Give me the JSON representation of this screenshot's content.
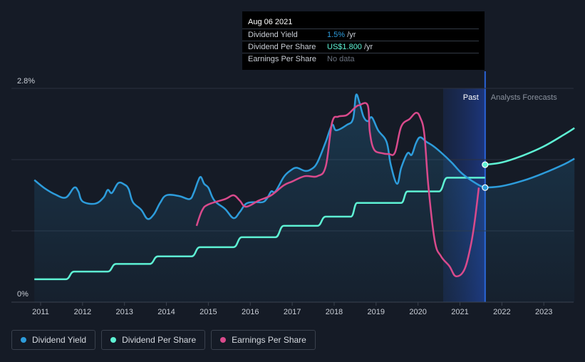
{
  "chart_data": {
    "type": "line",
    "title": "",
    "xlabel": "",
    "ylabel": "",
    "ylim": [
      0,
      2.8
    ],
    "y_tick_labels": [
      "2.8%",
      "0%"
    ],
    "x_ticks": [
      2011,
      2012,
      2013,
      2014,
      2015,
      2016,
      2017,
      2018,
      2019,
      2020,
      2021,
      2022,
      2023
    ],
    "x_tick_labels": [
      "2011",
      "2012",
      "2013",
      "2014",
      "2015",
      "2016",
      "2017",
      "2018",
      "2019",
      "2020",
      "2021",
      "2022",
      "2023"
    ],
    "xlim": [
      2010.8,
      2023.73
    ],
    "past_label": "Past",
    "forecast_label": "Analysts Forecasts",
    "past_region_start": 2020.6,
    "forecast_start": 2021.6,
    "series": [
      {
        "name": "Dividend Yield",
        "color": "#2d9cdb",
        "unit": "%",
        "points": [
          [
            2010.85,
            1.6
          ],
          [
            2011.1,
            1.49
          ],
          [
            2011.35,
            1.41
          ],
          [
            2011.6,
            1.37
          ],
          [
            2011.8,
            1.5
          ],
          [
            2011.9,
            1.45
          ],
          [
            2012.0,
            1.32
          ],
          [
            2012.3,
            1.29
          ],
          [
            2012.5,
            1.37
          ],
          [
            2012.6,
            1.47
          ],
          [
            2012.7,
            1.43
          ],
          [
            2012.85,
            1.56
          ],
          [
            2013.0,
            1.54
          ],
          [
            2013.1,
            1.48
          ],
          [
            2013.2,
            1.31
          ],
          [
            2013.4,
            1.21
          ],
          [
            2013.55,
            1.09
          ],
          [
            2013.7,
            1.15
          ],
          [
            2013.85,
            1.3
          ],
          [
            2014.0,
            1.4
          ],
          [
            2014.3,
            1.39
          ],
          [
            2014.55,
            1.35
          ],
          [
            2014.65,
            1.43
          ],
          [
            2014.75,
            1.58
          ],
          [
            2014.82,
            1.64
          ],
          [
            2014.9,
            1.55
          ],
          [
            2015.0,
            1.5
          ],
          [
            2015.1,
            1.37
          ],
          [
            2015.2,
            1.3
          ],
          [
            2015.4,
            1.22
          ],
          [
            2015.6,
            1.1
          ],
          [
            2015.75,
            1.18
          ],
          [
            2015.9,
            1.29
          ],
          [
            2016.1,
            1.31
          ],
          [
            2016.3,
            1.31
          ],
          [
            2016.4,
            1.36
          ],
          [
            2016.5,
            1.45
          ],
          [
            2016.6,
            1.45
          ],
          [
            2016.8,
            1.64
          ],
          [
            2016.95,
            1.72
          ],
          [
            2017.1,
            1.76
          ],
          [
            2017.3,
            1.72
          ],
          [
            2017.45,
            1.74
          ],
          [
            2017.6,
            1.83
          ],
          [
            2017.8,
            2.1
          ],
          [
            2017.95,
            2.32
          ],
          [
            2018.05,
            2.25
          ],
          [
            2018.3,
            2.32
          ],
          [
            2018.45,
            2.4
          ],
          [
            2018.52,
            2.71
          ],
          [
            2018.6,
            2.62
          ],
          [
            2018.7,
            2.43
          ],
          [
            2018.8,
            2.37
          ],
          [
            2018.9,
            2.42
          ],
          [
            2019.05,
            2.25
          ],
          [
            2019.25,
            2.1
          ],
          [
            2019.35,
            1.8
          ],
          [
            2019.5,
            1.55
          ],
          [
            2019.6,
            1.76
          ],
          [
            2019.75,
            1.95
          ],
          [
            2019.85,
            1.93
          ],
          [
            2019.95,
            2.08
          ],
          [
            2020.05,
            2.16
          ],
          [
            2020.2,
            2.1
          ],
          [
            2020.35,
            2.05
          ],
          [
            2020.55,
            1.96
          ],
          [
            2020.8,
            1.83
          ],
          [
            2021.0,
            1.71
          ],
          [
            2021.2,
            1.62
          ],
          [
            2021.4,
            1.55
          ],
          [
            2021.5,
            1.52
          ],
          [
            2021.6,
            1.5
          ]
        ]
      },
      {
        "name": "Dividend Yield forecast",
        "color": "#2d9cdb",
        "unit": "%",
        "points": [
          [
            2021.6,
            1.5
          ],
          [
            2022.0,
            1.52
          ],
          [
            2022.5,
            1.59
          ],
          [
            2023.0,
            1.69
          ],
          [
            2023.5,
            1.81
          ],
          [
            2023.73,
            1.88
          ]
        ]
      },
      {
        "name": "Dividend Per Share",
        "color": "#5ef2d4",
        "unit": "US$",
        "points": [
          [
            2010.85,
            0.3
          ],
          [
            2011.6,
            0.3
          ],
          [
            2011.8,
            0.4
          ],
          [
            2012.6,
            0.4
          ],
          [
            2012.8,
            0.5
          ],
          [
            2013.6,
            0.5
          ],
          [
            2013.8,
            0.6
          ],
          [
            2014.6,
            0.6
          ],
          [
            2014.8,
            0.72
          ],
          [
            2015.6,
            0.72
          ],
          [
            2015.8,
            0.85
          ],
          [
            2016.6,
            0.85
          ],
          [
            2016.8,
            1.0
          ],
          [
            2017.6,
            1.0
          ],
          [
            2017.8,
            1.12
          ],
          [
            2018.4,
            1.12
          ],
          [
            2018.55,
            1.3
          ],
          [
            2019.6,
            1.3
          ],
          [
            2019.75,
            1.45
          ],
          [
            2020.5,
            1.45
          ],
          [
            2020.7,
            1.63
          ],
          [
            2021.6,
            1.63
          ]
        ]
      },
      {
        "name": "Dividend Per Share forecast",
        "color": "#5ef2d4",
        "unit": "US$",
        "points": [
          [
            2021.6,
            1.8
          ],
          [
            2022.0,
            1.83
          ],
          [
            2022.5,
            1.92
          ],
          [
            2023.0,
            2.04
          ],
          [
            2023.5,
            2.2
          ],
          [
            2023.73,
            2.28
          ]
        ]
      },
      {
        "name": "Earnings Per Share",
        "color": "#d94a8c",
        "unit": "US$",
        "points": [
          [
            2014.72,
            1.0
          ],
          [
            2014.85,
            1.2
          ],
          [
            2015.0,
            1.28
          ],
          [
            2015.4,
            1.35
          ],
          [
            2015.6,
            1.4
          ],
          [
            2015.75,
            1.33
          ],
          [
            2015.9,
            1.25
          ],
          [
            2016.2,
            1.33
          ],
          [
            2016.5,
            1.4
          ],
          [
            2016.8,
            1.53
          ],
          [
            2017.0,
            1.58
          ],
          [
            2017.3,
            1.65
          ],
          [
            2017.6,
            1.65
          ],
          [
            2017.8,
            1.78
          ],
          [
            2017.95,
            2.35
          ],
          [
            2018.1,
            2.43
          ],
          [
            2018.3,
            2.45
          ],
          [
            2018.5,
            2.55
          ],
          [
            2018.6,
            2.58
          ],
          [
            2018.8,
            2.58
          ],
          [
            2018.85,
            2.23
          ],
          [
            2018.95,
            2.0
          ],
          [
            2019.15,
            1.95
          ],
          [
            2019.3,
            1.94
          ],
          [
            2019.45,
            1.96
          ],
          [
            2019.6,
            2.3
          ],
          [
            2019.8,
            2.4
          ],
          [
            2019.95,
            2.48
          ],
          [
            2020.05,
            2.42
          ],
          [
            2020.15,
            2.2
          ],
          [
            2020.25,
            1.5
          ],
          [
            2020.4,
            0.8
          ],
          [
            2020.55,
            0.6
          ],
          [
            2020.75,
            0.47
          ],
          [
            2020.9,
            0.34
          ],
          [
            2021.1,
            0.42
          ],
          [
            2021.25,
            0.72
          ],
          [
            2021.35,
            1.05
          ],
          [
            2021.45,
            1.5
          ]
        ]
      }
    ],
    "highlight_points": [
      {
        "series": "Dividend Per Share",
        "x": 2021.6,
        "y": 1.8
      },
      {
        "series": "Dividend Yield",
        "x": 2021.6,
        "y": 1.5
      }
    ]
  },
  "tooltip": {
    "date": "Aug 06 2021",
    "rows": [
      {
        "label": "Dividend Yield",
        "value": "1.5%",
        "unit": " /yr"
      },
      {
        "label": "Dividend Per Share",
        "value": "US$1.800",
        "unit": " /yr"
      },
      {
        "label": "Earnings Per Share",
        "value": "No data",
        "unit": ""
      }
    ]
  },
  "legend": [
    {
      "label": "Dividend Yield",
      "color": "#2d9cdb"
    },
    {
      "label": "Dividend Per Share",
      "color": "#5ef2d4"
    },
    {
      "label": "Earnings Per Share",
      "color": "#d94a8c"
    }
  ]
}
